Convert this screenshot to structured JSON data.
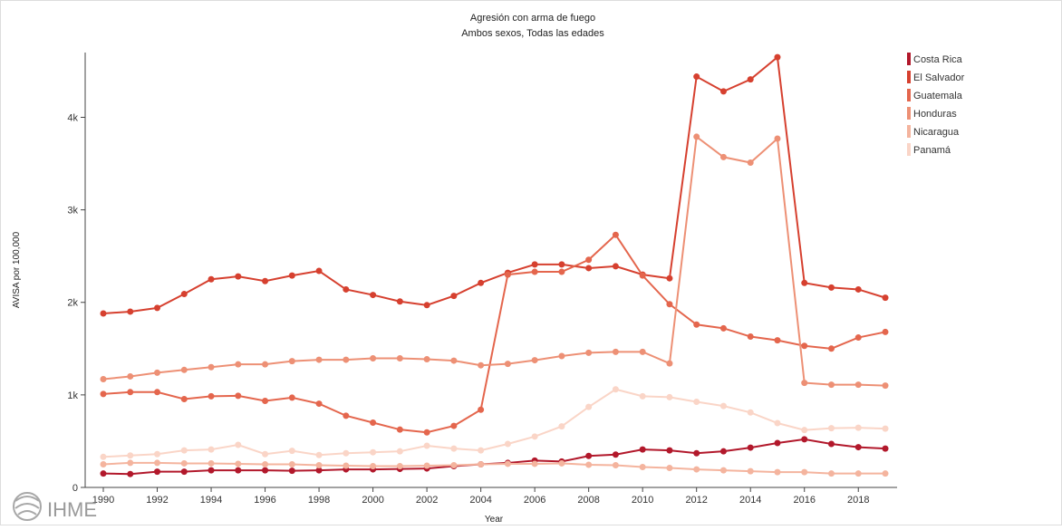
{
  "chart_data": {
    "type": "line",
    "title": "Agresión con arma de fuego",
    "subtitle": "Ambos sexos, Todas las edades",
    "xlabel": "Year",
    "ylabel": "AVISA por 100,000",
    "x": [
      1990,
      1991,
      1992,
      1993,
      1994,
      1995,
      1996,
      1997,
      1998,
      1999,
      2000,
      2001,
      2002,
      2003,
      2004,
      2005,
      2006,
      2007,
      2008,
      2009,
      2010,
      2011,
      2012,
      2013,
      2014,
      2015,
      2016,
      2017,
      2018,
      2019
    ],
    "xlim": [
      1990,
      2019
    ],
    "ylim": [
      0,
      4700
    ],
    "x_ticks": [
      {
        "value": 1990,
        "label": "1990"
      },
      {
        "value": 1992,
        "label": "1992"
      },
      {
        "value": 1994,
        "label": "1994"
      },
      {
        "value": 1996,
        "label": "1996"
      },
      {
        "value": 1998,
        "label": "1998"
      },
      {
        "value": 2000,
        "label": "2000"
      },
      {
        "value": 2002,
        "label": "2002"
      },
      {
        "value": 2004,
        "label": "2004"
      },
      {
        "value": 2006,
        "label": "2006"
      },
      {
        "value": 2008,
        "label": "2008"
      },
      {
        "value": 2010,
        "label": "2010"
      },
      {
        "value": 2012,
        "label": "2012"
      },
      {
        "value": 2014,
        "label": "2014"
      },
      {
        "value": 2016,
        "label": "2016"
      },
      {
        "value": 2018,
        "label": "2018"
      }
    ],
    "y_ticks": [
      {
        "value": 0,
        "label": "0"
      },
      {
        "value": 1000,
        "label": "1k"
      },
      {
        "value": 2000,
        "label": "2k"
      },
      {
        "value": 3000,
        "label": "3k"
      },
      {
        "value": 4000,
        "label": "4k"
      }
    ],
    "grid": false,
    "legend_position": "top-right",
    "series": [
      {
        "name": "Costa Rica",
        "color": "#b2182b",
        "values": [
          150,
          145,
          170,
          170,
          185,
          185,
          185,
          180,
          185,
          195,
          195,
          200,
          205,
          230,
          250,
          265,
          290,
          280,
          340,
          355,
          410,
          400,
          370,
          390,
          430,
          480,
          520,
          470,
          435,
          420
        ]
      },
      {
        "name": "El Salvador",
        "color": "#d6402f",
        "values": [
          1880,
          1900,
          1940,
          2090,
          2250,
          2280,
          2230,
          2290,
          2340,
          2140,
          2080,
          2010,
          1970,
          2070,
          2210,
          2320,
          2410,
          2410,
          2370,
          2390,
          2300,
          2260,
          4440,
          4280,
          4410,
          4650,
          2210,
          2160,
          2140,
          2050
        ]
      },
      {
        "name": "Guatemala",
        "color": "#e4664d",
        "values": [
          1010,
          1030,
          1030,
          955,
          985,
          990,
          935,
          970,
          905,
          775,
          700,
          625,
          595,
          665,
          840,
          2300,
          2330,
          2330,
          2460,
          2730,
          2290,
          1980,
          1760,
          1720,
          1630,
          1590,
          1530,
          1500,
          1620,
          1680
        ]
      },
      {
        "name": "Honduras",
        "color": "#ed9075",
        "values": [
          1170,
          1200,
          1240,
          1270,
          1300,
          1330,
          1330,
          1365,
          1380,
          1380,
          1395,
          1395,
          1385,
          1370,
          1320,
          1335,
          1375,
          1420,
          1455,
          1465,
          1465,
          1340,
          3790,
          3570,
          3510,
          3770,
          1130,
          1110,
          1110,
          1100
        ]
      },
      {
        "name": "Nicaragua",
        "color": "#f4b49e",
        "values": [
          250,
          265,
          265,
          260,
          260,
          255,
          250,
          250,
          240,
          235,
          230,
          230,
          235,
          240,
          250,
          255,
          255,
          260,
          245,
          240,
          220,
          210,
          195,
          185,
          175,
          165,
          165,
          150,
          150,
          150
        ]
      },
      {
        "name": "Panamá",
        "color": "#fad5c7",
        "values": [
          330,
          345,
          360,
          400,
          410,
          460,
          360,
          395,
          350,
          370,
          380,
          390,
          450,
          420,
          400,
          470,
          550,
          660,
          870,
          1060,
          985,
          975,
          925,
          880,
          810,
          695,
          620,
          640,
          645,
          635
        ]
      }
    ]
  },
  "logo": {
    "text": "IHME"
  }
}
